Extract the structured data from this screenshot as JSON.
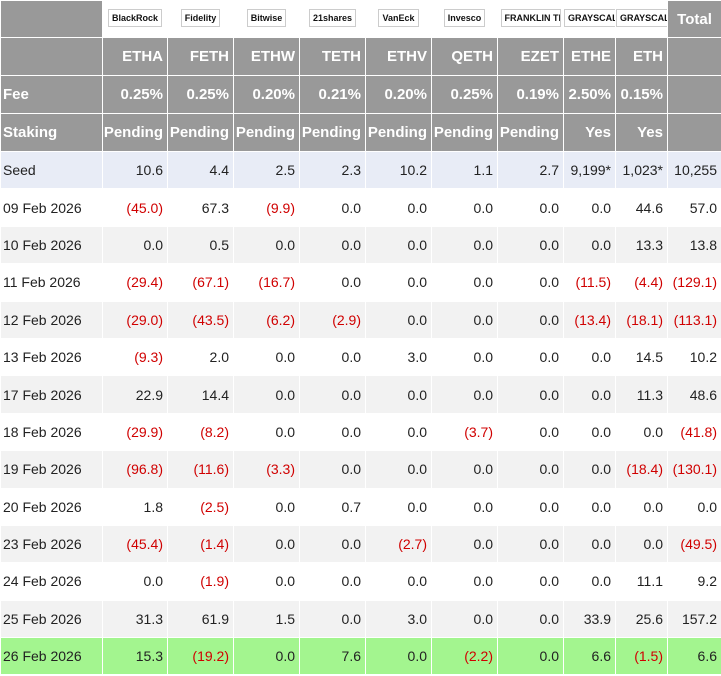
{
  "header": {
    "logos": [
      "BlackRock",
      "Fidelity",
      "Bitwise",
      "21shares",
      "VanEck",
      "Invesco",
      "FRANKLIN TEMPLETON",
      "GRAYSCALE",
      "GRAYSCALE"
    ],
    "total": "Total",
    "tickers": [
      "ETHA",
      "FETH",
      "ETHW",
      "TETH",
      "ETHV",
      "QETH",
      "EZET",
      "ETHE",
      "ETH"
    ]
  },
  "fee": {
    "label": "Fee",
    "values": [
      "0.25%",
      "0.25%",
      "0.20%",
      "0.21%",
      "0.20%",
      "0.25%",
      "0.19%",
      "2.50%",
      "0.15%"
    ]
  },
  "staking": {
    "label": "Staking",
    "values": [
      "Pending",
      "Pending",
      "Pending",
      "Pending",
      "Pending",
      "Pending",
      "Pending",
      "Yes",
      "Yes"
    ]
  },
  "table": {
    "rows": [
      [
        "Seed",
        "10.6",
        "4.4",
        "2.5",
        "2.3",
        "10.2",
        "1.1",
        "2.7",
        "9,199*",
        "1,023*",
        "10,255"
      ],
      [
        "09 Feb 2026",
        "(45.0)",
        "67.3",
        "(9.9)",
        "0.0",
        "0.0",
        "0.0",
        "0.0",
        "0.0",
        "44.6",
        "57.0"
      ],
      [
        "10 Feb 2026",
        "0.0",
        "0.5",
        "0.0",
        "0.0",
        "0.0",
        "0.0",
        "0.0",
        "0.0",
        "13.3",
        "13.8"
      ],
      [
        "11 Feb 2026",
        "(29.4)",
        "(67.1)",
        "(16.7)",
        "0.0",
        "0.0",
        "0.0",
        "0.0",
        "(11.5)",
        "(4.4)",
        "(129.1)"
      ],
      [
        "12 Feb 2026",
        "(29.0)",
        "(43.5)",
        "(6.2)",
        "(2.9)",
        "0.0",
        "0.0",
        "0.0",
        "(13.4)",
        "(18.1)",
        "(113.1)"
      ],
      [
        "13 Feb 2026",
        "(9.3)",
        "2.0",
        "0.0",
        "0.0",
        "3.0",
        "0.0",
        "0.0",
        "0.0",
        "14.5",
        "10.2"
      ],
      [
        "17 Feb 2026",
        "22.9",
        "14.4",
        "0.0",
        "0.0",
        "0.0",
        "0.0",
        "0.0",
        "0.0",
        "11.3",
        "48.6"
      ],
      [
        "18 Feb 2026",
        "(29.9)",
        "(8.2)",
        "0.0",
        "0.0",
        "0.0",
        "(3.7)",
        "0.0",
        "0.0",
        "0.0",
        "(41.8)"
      ],
      [
        "19 Feb 2026",
        "(96.8)",
        "(11.6)",
        "(3.3)",
        "0.0",
        "0.0",
        "0.0",
        "0.0",
        "0.0",
        "(18.4)",
        "(130.1)"
      ],
      [
        "20 Feb 2026",
        "1.8",
        "(2.5)",
        "0.0",
        "0.7",
        "0.0",
        "0.0",
        "0.0",
        "0.0",
        "0.0",
        "0.0"
      ],
      [
        "23 Feb 2026",
        "(45.4)",
        "(1.4)",
        "0.0",
        "0.0",
        "(2.7)",
        "0.0",
        "0.0",
        "0.0",
        "0.0",
        "(49.5)"
      ],
      [
        "24 Feb 2026",
        "0.0",
        "(1.9)",
        "0.0",
        "0.0",
        "0.0",
        "0.0",
        "0.0",
        "0.0",
        "11.1",
        "9.2"
      ],
      [
        "25 Feb 2026",
        "31.3",
        "61.9",
        "1.5",
        "0.0",
        "3.0",
        "0.0",
        "0.0",
        "33.9",
        "25.6",
        "157.2"
      ],
      [
        "26 Feb 2026",
        "15.3",
        "(19.2)",
        "0.0",
        "7.6",
        "0.0",
        "(2.2)",
        "0.0",
        "6.6",
        "(1.5)",
        "6.6"
      ]
    ]
  }
}
